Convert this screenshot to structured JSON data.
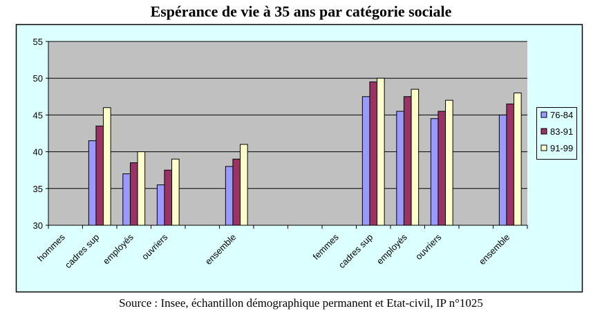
{
  "chart_data": {
    "type": "bar",
    "title": "Espérance de vie à 35 ans par catégorie sociale",
    "source": "Source : Insee, échantillon démographique permanent et Etat-civil, IP n°1025",
    "categories": [
      "hommes",
      "cadres sup",
      "employés",
      "ouvriers",
      "",
      "ensemble",
      "",
      "",
      "femmes",
      "cadres sup",
      "employés",
      "ouvriers",
      "",
      "ensemble"
    ],
    "series": [
      {
        "name": "76-84",
        "color": "#9999ff",
        "values": [
          null,
          41.5,
          37,
          35.5,
          null,
          38,
          null,
          null,
          null,
          47.5,
          45.5,
          44.5,
          null,
          45
        ]
      },
      {
        "name": "83-91",
        "color": "#993366",
        "values": [
          null,
          43.5,
          38.5,
          37.5,
          null,
          39,
          null,
          null,
          null,
          49.5,
          47.5,
          45.5,
          null,
          46.5
        ]
      },
      {
        "name": "91-99",
        "color": "#ffffcc",
        "values": [
          null,
          46,
          40,
          39,
          null,
          41,
          null,
          null,
          null,
          50,
          48.5,
          47,
          null,
          48
        ]
      }
    ],
    "ylim": [
      30,
      55
    ],
    "yticks": [
      30,
      35,
      40,
      45,
      50,
      55
    ],
    "grid": true,
    "legend": "right",
    "plot_background": "#c0c0c0",
    "chart_background": "#dcffff"
  }
}
